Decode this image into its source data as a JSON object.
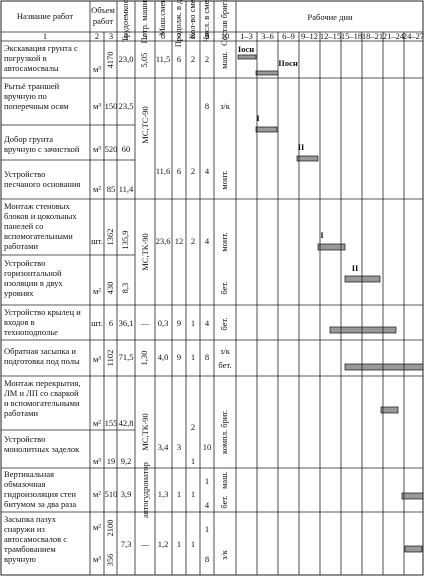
{
  "header": {
    "work_name": "Название работ",
    "volume": [
      "Объем",
      "работ"
    ],
    "labor": "Трудоемкость",
    "machines": "Потр. машины",
    "machine_shifts": "Маш.смен",
    "duration": "Продолж. в днях",
    "shifts": "Кол-во смен",
    "workers": "Числ. в смену",
    "crew": "Состав бригады",
    "days": "Рабочие дни",
    "col_numbers": [
      "1",
      "2",
      "3",
      "4",
      "5",
      "6",
      "7",
      "8",
      "9",
      "10"
    ],
    "day_ranges": [
      "1–3",
      "3–6",
      "6–9",
      "9–12",
      "12–15",
      "15–18",
      "18–21",
      "21–24",
      "24–27"
    ]
  },
  "rows": [
    {
      "name": [
        "Экскавация грунта с",
        "погрузкой в",
        "автосамосвалы"
      ],
      "cells": [
        "м³",
        "4170",
        "23,0",
        "5,05",
        "11,5",
        "6",
        "2",
        "2",
        "маш."
      ]
    },
    {
      "name": [
        "Рытьё траншей",
        "вручную по",
        "поперечным осям"
      ],
      "cells": [
        "м³",
        "150",
        "23,5",
        "8",
        "з/к",
        "МС,ТС-90"
      ]
    },
    {
      "name": [
        "Добор грунта",
        "вручную с зачисткой"
      ],
      "cells": [
        "м³",
        "520",
        "60"
      ]
    },
    {
      "name": [
        "Устройство",
        "песчаного основания"
      ],
      "cells": [
        "м²",
        "85",
        "11,4",
        "11,6",
        "6",
        "2",
        "4",
        "монт."
      ]
    },
    {
      "name": [
        "Монтаж стеновых",
        "блоков и цокольных",
        "панелей со",
        "вспомогательными",
        "работами"
      ],
      "cells": [
        "шт.",
        "1362",
        "135,9",
        "МС,ТК-90",
        "23,6",
        "12",
        "2",
        "4",
        "монт."
      ]
    },
    {
      "name": [
        "Устройство",
        "горизонтальной",
        "изоляции в двух",
        "уровнях"
      ],
      "cells": [
        "м²",
        "430",
        "8,3",
        "бет."
      ]
    },
    {
      "name": [
        "Устройство крылец и",
        "входов в",
        "техноподполье"
      ],
      "cells": [
        "шт.",
        "6",
        "36,1",
        "—",
        "0,3",
        "9",
        "1",
        "4",
        "бет."
      ]
    },
    {
      "name": [
        "Обратная засыпка и",
        "подготовка под полы"
      ],
      "cells": [
        "м³",
        "1102",
        "71,5",
        "1,30",
        "4,0",
        "9",
        "1",
        "8",
        "з/к",
        "бет."
      ]
    },
    {
      "name": [
        "Монтаж перекрытия,",
        "ЛМ и ЛП со сваркой",
        "и вспомогательными",
        "работами"
      ],
      "cells": [
        "м²",
        "155",
        "42,8",
        "МС,ТК-90"
      ]
    },
    {
      "name": [
        "Устройство",
        "монолитных заделок"
      ],
      "cells": [
        "м³",
        "19",
        "9,2",
        "3,4",
        "3",
        "2",
        "1",
        "10",
        "компл. бриг."
      ]
    },
    {
      "name": [
        "Вертикальная",
        "обмазочная",
        "гидроизоляция стен",
        "битумом за два раза"
      ],
      "cells": [
        "м²",
        "510",
        "3,9",
        "автогудронатор",
        "1,3",
        "1",
        "1",
        "1",
        "4",
        "маш.",
        "бет."
      ]
    },
    {
      "name": [
        "Засыпка пазух",
        "снаружи из",
        "автосамосвалов с",
        "трамбованием",
        "вручную"
      ],
      "cells": [
        "м²",
        "2100",
        "м³",
        "356",
        "7,3",
        "—",
        "1,2",
        "1",
        "1",
        "1",
        "8",
        "з/к"
      ]
    }
  ],
  "annotations": [
    "Iосн",
    "IIосн",
    "I",
    "II",
    "I",
    "II"
  ]
}
